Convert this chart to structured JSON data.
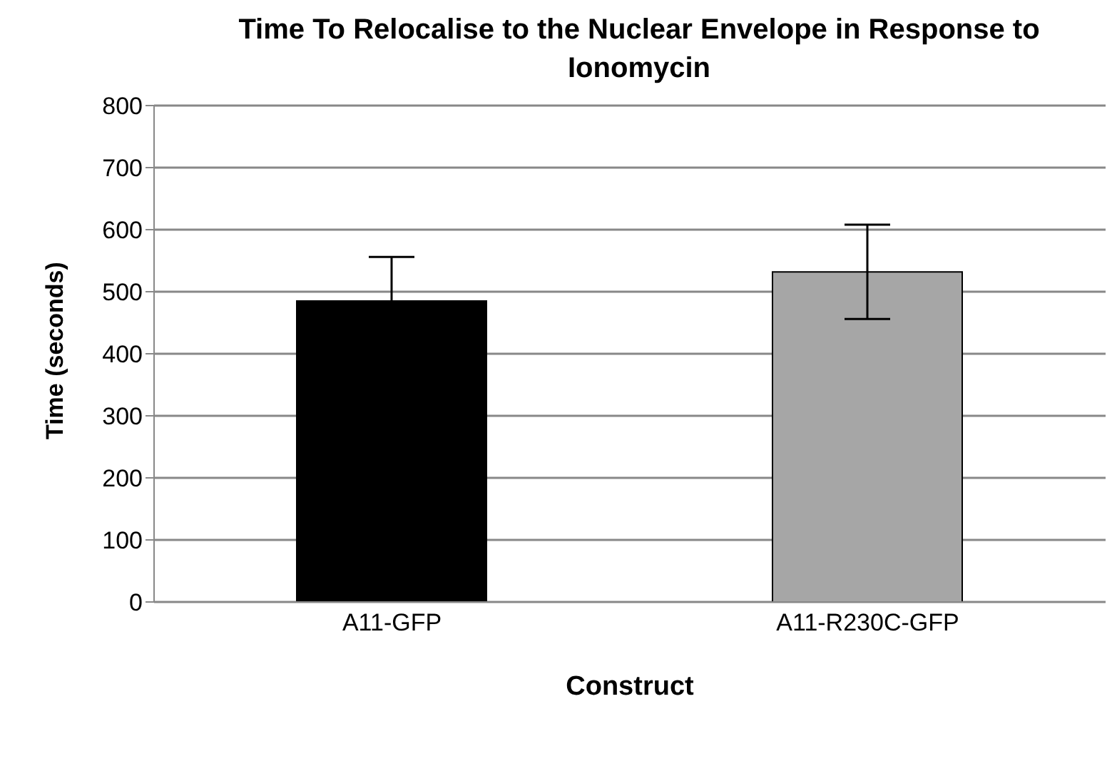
{
  "chart_data": {
    "type": "bar",
    "title": "Time To Relocalise to the Nuclear Envelope in Response to Ionomycin",
    "xlabel": "Construct",
    "ylabel": "Time (seconds)",
    "categories": [
      "A11-GFP",
      "A11-R230C-GFP"
    ],
    "values": [
      485,
      532
    ],
    "colors": [
      "#000000",
      "#a6a6a6"
    ],
    "errors": [
      71,
      76
    ],
    "ylim": [
      0,
      800
    ],
    "yticks": [
      0,
      100,
      200,
      300,
      400,
      500,
      600,
      700,
      800
    ],
    "grid": "y"
  }
}
